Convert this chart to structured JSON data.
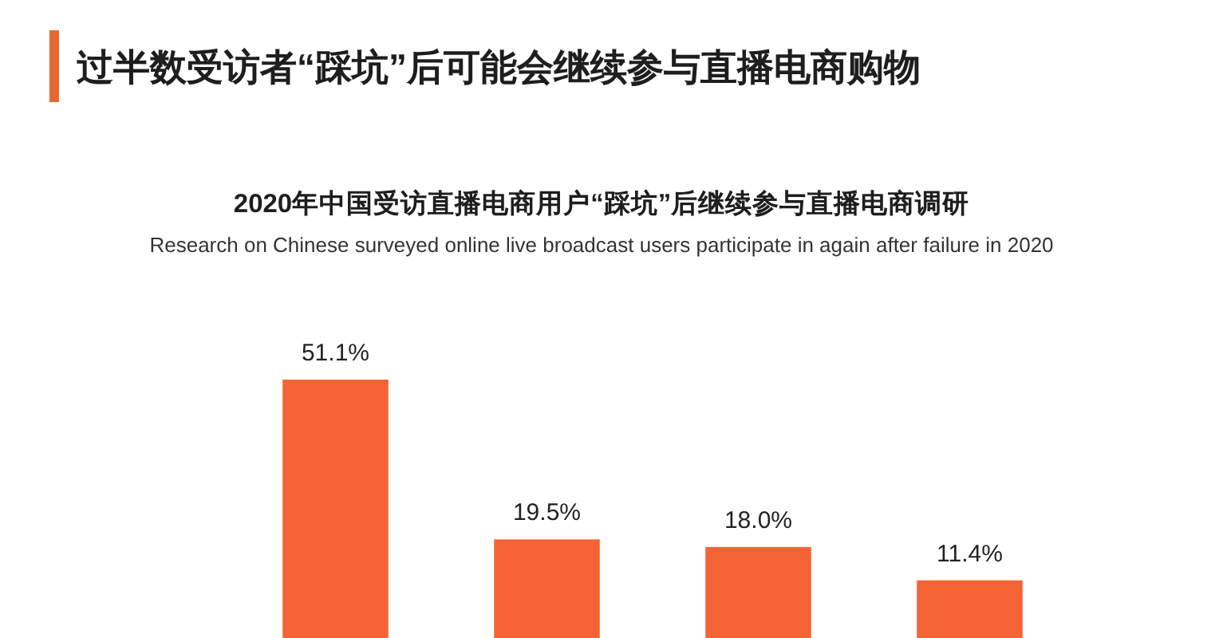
{
  "chart_data": {
    "type": "bar",
    "title": "过半数受访者“踩坑”后可能会继续参与直播电商购物",
    "subtitle": "2020年中国受访直播电商用户“踩坑”后继续参与直播电商调研",
    "annotations": [
      "Research on Chinese surveyed online live broadcast users participate in again after failure in 2020"
    ],
    "categories": [
      null,
      null,
      null,
      null
    ],
    "values": [
      51.1,
      19.5,
      18.0,
      11.4
    ],
    "color": "#f46334",
    "value_labels": [
      "51.1%",
      "19.5%",
      "18.0%",
      "11.4%"
    ]
  }
}
